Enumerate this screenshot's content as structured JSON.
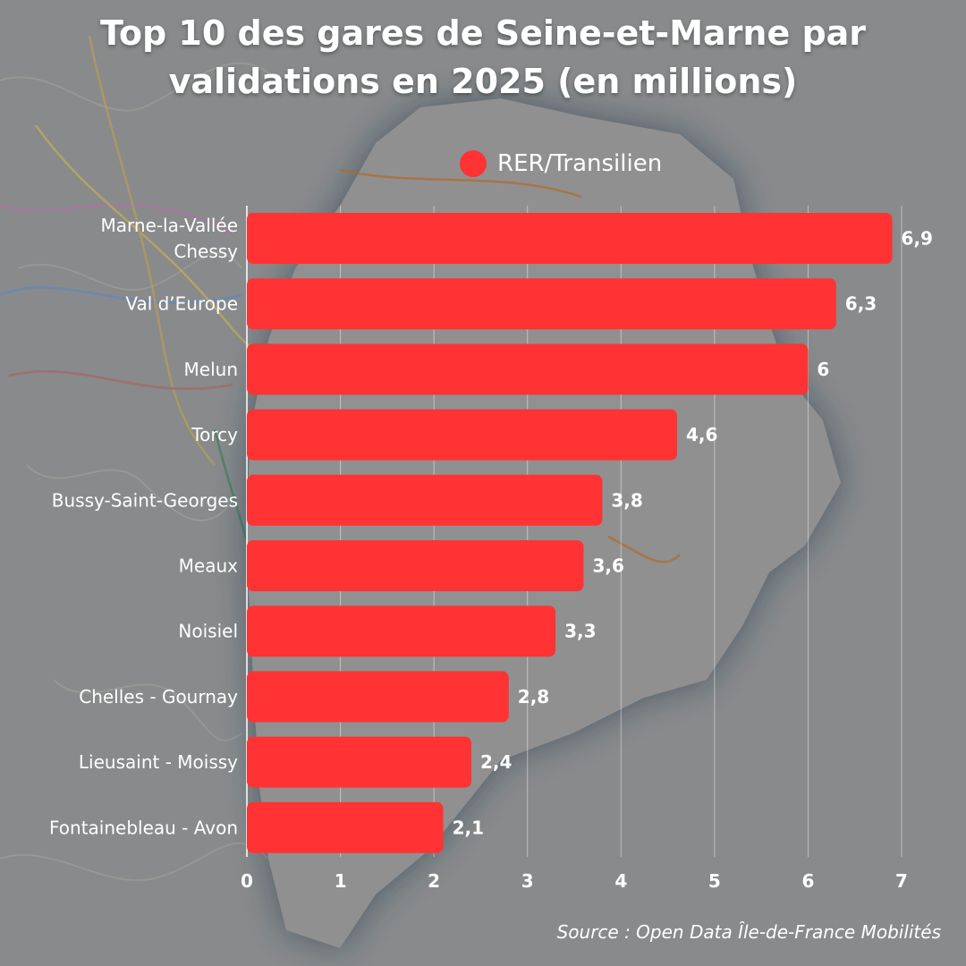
{
  "chart_data": {
    "type": "bar",
    "orientation": "horizontal",
    "title_line1": "Top 10 des gares de Seine-et-Marne par",
    "title_line2": "validations en 2025 (en millions)",
    "categories": [
      "Marne-la-Vallée\nChessy",
      "Val d’Europe",
      "Melun",
      "Torcy",
      "Bussy-Saint-Georges",
      "Meaux",
      "Noisiel",
      "Chelles - Gournay",
      "Lieusaint - Moissy",
      "Fontainebleau - Avon"
    ],
    "series": [
      {
        "name": "RER/Transilien",
        "color": "#ff3333",
        "values": [
          6.9,
          6.3,
          6,
          4.6,
          3.8,
          3.6,
          3.3,
          2.8,
          2.4,
          2.1
        ],
        "labels": [
          "6,9",
          "6,3",
          "6",
          "4,6",
          "3,8",
          "3,6",
          "3,3",
          "2,8",
          "2,4",
          "2,1"
        ]
      }
    ],
    "xlim": [
      0,
      7
    ],
    "xticks": [
      "0",
      "1",
      "2",
      "3",
      "4",
      "5",
      "6",
      "7"
    ],
    "grid": true,
    "legend_position": "top"
  },
  "source": "Source : Open Data Île-de-France Mobilités"
}
